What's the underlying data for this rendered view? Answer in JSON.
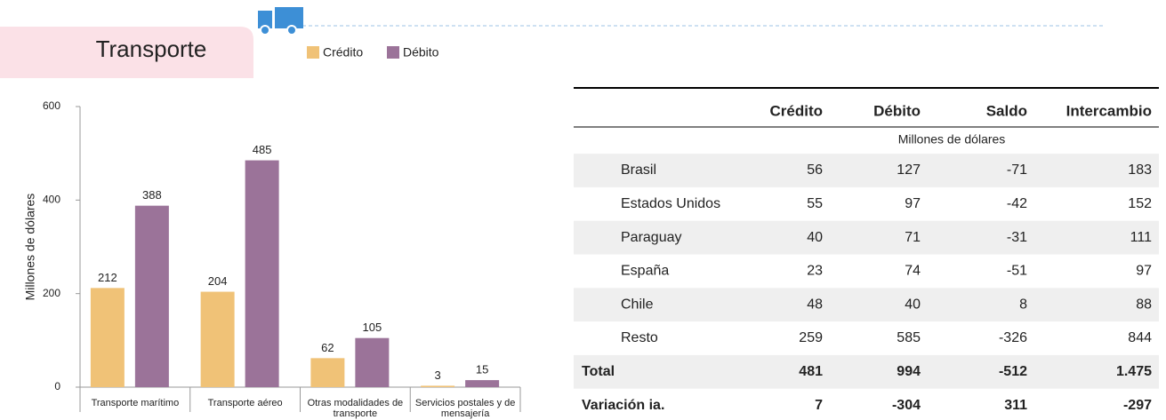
{
  "header": {
    "title": "Transporte"
  },
  "chart_data": {
    "type": "bar",
    "categories": [
      "Transporte marítimo",
      "Transporte aéreo",
      "Otras modalidades de transporte",
      "Servicios postales y de mensajería"
    ],
    "series": [
      {
        "name": "Crédito",
        "color": "#f0c277",
        "values": [
          212,
          204,
          62,
          3
        ]
      },
      {
        "name": "Débito",
        "color": "#9b7399",
        "values": [
          388,
          485,
          105,
          15
        ]
      }
    ],
    "ylabel": "Millones de dólares",
    "ylim": [
      0,
      600
    ],
    "yticks": [
      0,
      200,
      400,
      600
    ],
    "grid": false
  },
  "table": {
    "columns": [
      "Crédito",
      "Débito",
      "Saldo",
      "Intercambio"
    ],
    "unit": "Millones de dólares",
    "rows": [
      [
        "Brasil",
        "56",
        "127",
        "-71",
        "183"
      ],
      [
        "Estados Unidos",
        "55",
        "97",
        "-42",
        "152"
      ],
      [
        "Paraguay",
        "40",
        "71",
        "-31",
        "111"
      ],
      [
        "España",
        "23",
        "74",
        "-51",
        "97"
      ],
      [
        "Chile",
        "48",
        "40",
        "8",
        "88"
      ],
      [
        "Resto",
        "259",
        "585",
        "-326",
        "844"
      ]
    ],
    "total": [
      "Total",
      "481",
      "994",
      "-512",
      "1.475"
    ],
    "variation": [
      "Variación ia.",
      "7",
      "-304",
      "311",
      "-297"
    ]
  }
}
